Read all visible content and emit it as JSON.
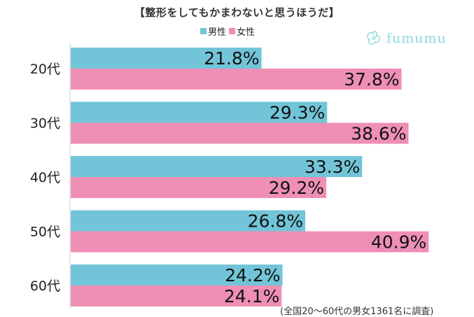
{
  "title": "【整形をしてもかまわないと思うほうだ】",
  "footnote": "(全国20～60代の男女1361名に調査)",
  "logo": {
    "text": "fumumu",
    "color": "#8fd8d8"
  },
  "colors": {
    "male": "#72c5d8",
    "female": "#ef8fb6"
  },
  "chart_data": {
    "type": "bar",
    "orientation": "horizontal",
    "categories": [
      "20代",
      "30代",
      "40代",
      "50代",
      "60代"
    ],
    "series": [
      {
        "name": "男性",
        "values": [
          21.8,
          29.3,
          33.3,
          26.8,
          24.2
        ],
        "labels": [
          "21.8%",
          "29.3%",
          "33.3%",
          "26.8%",
          "24.2%"
        ]
      },
      {
        "name": "女性",
        "values": [
          37.8,
          38.6,
          29.2,
          40.9,
          24.1
        ],
        "labels": [
          "37.8%",
          "38.6%",
          "29.2%",
          "40.9%",
          "24.1%"
        ]
      }
    ],
    "xlim": [
      0,
      50
    ],
    "grid": false,
    "legend_position": "top"
  }
}
